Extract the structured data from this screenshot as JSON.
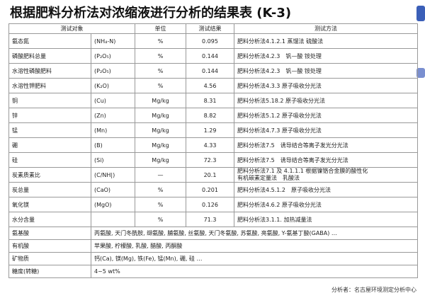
{
  "header": {
    "title": "根据肥料分析法对浓缩液进行分析的结果表 (K-3)"
  },
  "table": {
    "columns": [
      "测试对象",
      "单位",
      "测试结果",
      "测试方法"
    ],
    "rows": [
      {
        "name": "氨态氮",
        "formula": "(NH₄-N)",
        "unit": "%",
        "result": 0.095,
        "method": "肥料分析法4.1.2.1 蒸馏法 硫酸法"
      },
      {
        "name": "磷酸肥料总量",
        "formula": "(P₂O₅)",
        "unit": "%",
        "result": 0.144,
        "method": "肥料分析法4.2.3　钒—酸 铵处理"
      },
      {
        "name": "水溶性磷酸肥料",
        "formula": "(P₂O₅)",
        "unit": "%",
        "result": 0.144,
        "method": "肥料分析法4.2.3　钒—酸 铵处理"
      },
      {
        "name": "水溶性钾肥料",
        "formula": "(K₂O)",
        "unit": "%",
        "result": 4.56,
        "method": "肥料分析法4.3.3 原子吸收分光法"
      },
      {
        "name": "铜",
        "formula": "(Cu)",
        "unit": "Mg/kg",
        "result": 8.31,
        "method": "肥料分析法5.18.2 原子吸收分光法"
      },
      {
        "name": "锌",
        "formula": "(Zn)",
        "unit": "Mg/kg",
        "result": 8.82,
        "method": "肥料分析法5.1.2 原子吸收分光法"
      },
      {
        "name": "锰",
        "formula": "(Mn)",
        "unit": "Mg/kg",
        "result": 1.29,
        "method": "肥料分析法4.7.3 原子吸收分光法"
      },
      {
        "name": "硼",
        "formula": "(B)",
        "unit": "Mg/kg",
        "result": 4.33,
        "method": "肥料分析法7.5　诱导结合等离子发光分光法"
      },
      {
        "name": "硅",
        "formula": "(Si)",
        "unit": "Mg/kg",
        "result": 72.3,
        "method": "肥料分析法7.5　诱导结合等离子发光分光法"
      },
      {
        "name": "炭素质素比",
        "formula": "(C/NH|)",
        "unit": "—",
        "result": 20.1,
        "method": [
          "肥料分析法7.1 及 4.1.1.1 根据镍铬合金膜的酸性化",
          "有机碳素定量法　乳酸法"
        ]
      },
      {
        "name": "炭总量",
        "formula": "(CaO)",
        "unit": "%",
        "result": 0.201,
        "method": "肥料分析法4.5.1.2　原子吸收分光法"
      },
      {
        "name": "氧化镁",
        "formula": "(MgO)",
        "unit": "%",
        "result": 0.126,
        "method": "肥料分析法4.6.2 原子吸收分光法"
      },
      {
        "name": "水分含量",
        "unit": "%",
        "result": 71.3,
        "method": "肥料分析法3.1.1. 加热减量法"
      }
    ],
    "extra_rows": [
      {
        "name": "氨基酸",
        "text": "丙氨酸, 天门冬酰胺, 缬氨酸, 脯氨酸, 丝氨酸, 天门冬氨酸, 苏氨酸, 亮氨酸, Y-氨基丁酸(GABA) …"
      },
      {
        "name": "有机酸",
        "text": "苹果酸, 柠檬酸, 乳酸, 醋酸, 丙酮酸"
      },
      {
        "name": "矿物质",
        "text": "钙(Ca), 镁(Mg), 铁(Fe), 锰(Mn), 硼, 硅 …"
      },
      {
        "name": "糖度(转糖)",
        "text": "4~5 wt%"
      }
    ]
  },
  "footer": {
    "text": "分析者：名古屋环境测定分析中心"
  }
}
